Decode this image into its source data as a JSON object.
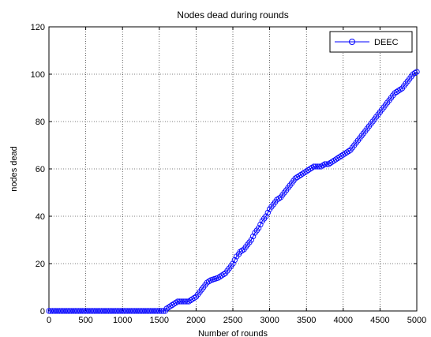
{
  "chart_data": {
    "type": "line",
    "title": "Nodes dead during rounds",
    "xlabel": "Number of rounds",
    "ylabel": "nodes dead",
    "xlim": [
      0,
      5000
    ],
    "ylim": [
      0,
      120
    ],
    "xticks": [
      0,
      500,
      1000,
      1500,
      2000,
      2500,
      3000,
      3500,
      4000,
      4500,
      5000
    ],
    "yticks": [
      0,
      20,
      40,
      60,
      80,
      100,
      120
    ],
    "grid": true,
    "legend_position": "top-right",
    "series": [
      {
        "name": "DEEC",
        "color": "#0000ff",
        "marker": "circle",
        "x": [
          0,
          500,
          1000,
          1500,
          1580,
          1600,
          1650,
          1700,
          1750,
          1800,
          1900,
          1950,
          2000,
          2050,
          2100,
          2150,
          2200,
          2300,
          2350,
          2400,
          2450,
          2500,
          2550,
          2580,
          2600,
          2650,
          2700,
          2750,
          2800,
          2850,
          2900,
          2950,
          3000,
          3050,
          3100,
          3150,
          3200,
          3250,
          3300,
          3350,
          3400,
          3450,
          3500,
          3550,
          3600,
          3650,
          3700,
          3750,
          3800,
          3850,
          3900,
          3950,
          4000,
          4050,
          4100,
          4150,
          4200,
          4250,
          4300,
          4350,
          4400,
          4450,
          4500,
          4550,
          4600,
          4650,
          4700,
          4750,
          4800,
          4850,
          4900,
          4950,
          5000
        ],
        "y": [
          0,
          0,
          0,
          0,
          0,
          1,
          2,
          3,
          4,
          4,
          4,
          5,
          6,
          8,
          10,
          12,
          13,
          14,
          15,
          16,
          18,
          20,
          23,
          24,
          25,
          26,
          28,
          30,
          33,
          35,
          38,
          40,
          43,
          45,
          47,
          48,
          50,
          52,
          54,
          56,
          57,
          58,
          59,
          60,
          61,
          61,
          61,
          62,
          62,
          63,
          64,
          65,
          66,
          67,
          68,
          70,
          72,
          74,
          76,
          78,
          80,
          82,
          84,
          86,
          88,
          90,
          92,
          93,
          94,
          96,
          98,
          100,
          101
        ]
      }
    ]
  }
}
